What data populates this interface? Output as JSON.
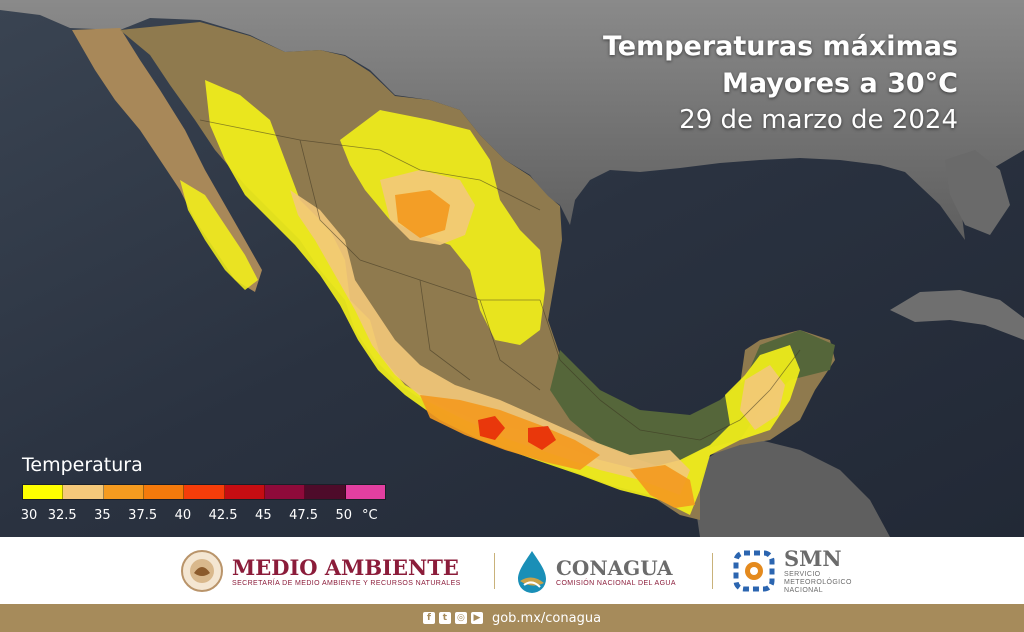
{
  "map": {
    "title_line1": "Temperaturas máximas",
    "title_line2": "Mayores a 30°C",
    "date": "29 de marzo de 2024",
    "colors": {
      "ocean": "#2b3340",
      "land_gray": "#6f6f6f",
      "land_terrain": "#9c8155",
      "land_green": "#5b6a3a"
    }
  },
  "legend": {
    "title": "Temperatura",
    "colors": [
      "#ffff00",
      "#f5c97a",
      "#f59b1f",
      "#f47a0c",
      "#f53d0a",
      "#c60d12",
      "#8e0a3a",
      "#4e0b2a",
      "#e23fa0"
    ],
    "ticks": [
      "30",
      "32.5",
      "35",
      "37.5",
      "40",
      "42.5",
      "45",
      "47.5",
      "50"
    ],
    "unit": "°C"
  },
  "logos": {
    "medio_ambiente": {
      "name": "MEDIO AMBIENTE",
      "subtitle": "SECRETARÍA DE MEDIO AMBIENTE Y RECURSOS NATURALES",
      "color": "#8b1c3a"
    },
    "conagua": {
      "name": "CONAGUA",
      "subtitle": "COMISIÓN NACIONAL DEL AGUA",
      "color": "#6b6b6b"
    },
    "smn": {
      "name": "SMN",
      "subtitle_lines": [
        "SERVICIO",
        "METEOROLÓGICO",
        "NACIONAL"
      ],
      "color": "#6b6b6b"
    }
  },
  "footer": {
    "url": "gob.mx/conagua",
    "social_icons": [
      "facebook-icon",
      "twitter-icon",
      "instagram-icon",
      "youtube-icon"
    ],
    "color": "#a68b5b"
  }
}
